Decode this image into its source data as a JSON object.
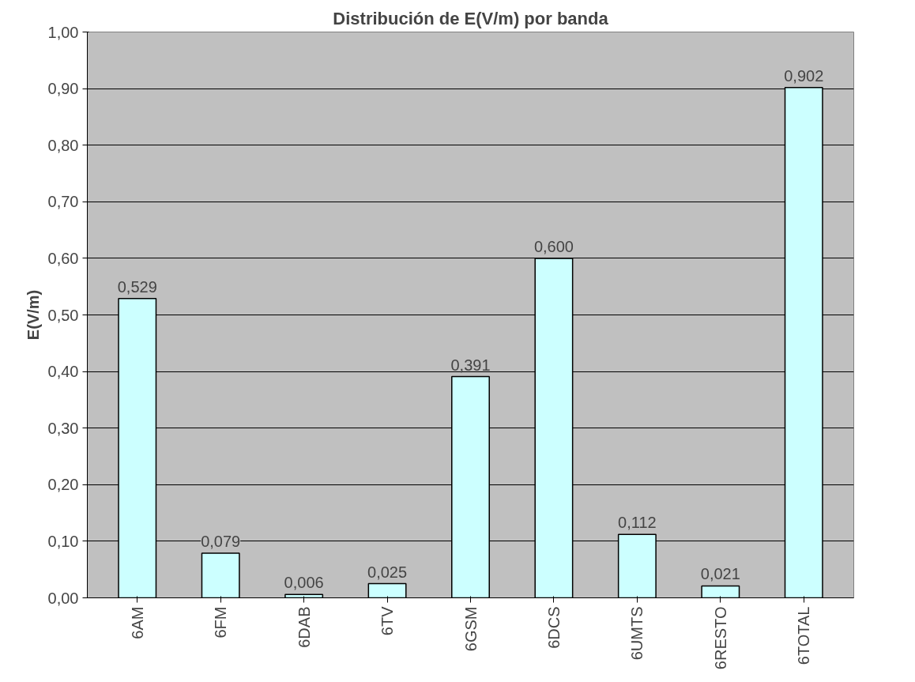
{
  "chart_data": {
    "type": "bar",
    "title": "Distribución de E(V/m) por banda",
    "ylabel": "E(V/m)",
    "categories": [
      "6AM",
      "6FM",
      "6DAB",
      "6TV",
      "6GSM",
      "6DCS",
      "6UMTS",
      "6RESTO",
      "6TOTAL"
    ],
    "values": [
      0.529,
      0.079,
      0.006,
      0.025,
      0.391,
      0.6,
      0.112,
      0.021,
      0.902
    ],
    "value_labels": [
      "0,529",
      "0,079",
      "0,006",
      "0,025",
      "0,391",
      "0,600",
      "0,112",
      "0,021",
      "0,902"
    ],
    "color": "#ccffff",
    "ylim": [
      0,
      1
    ],
    "yticks": [
      {
        "value": 0,
        "label": "0,00"
      },
      {
        "value": 0.1,
        "label": "0,10"
      },
      {
        "value": 0.2,
        "label": "0,20"
      },
      {
        "value": 0.3,
        "label": "0,30"
      },
      {
        "value": 0.4,
        "label": "0,40"
      },
      {
        "value": 0.5,
        "label": "0,50"
      },
      {
        "value": 0.6,
        "label": "0,60"
      },
      {
        "value": 0.7,
        "label": "0,70"
      },
      {
        "value": 0.8,
        "label": "0,80"
      },
      {
        "value": 0.9,
        "label": "0,90"
      },
      {
        "value": 1.0,
        "label": "1,00"
      }
    ],
    "grid": "y"
  }
}
